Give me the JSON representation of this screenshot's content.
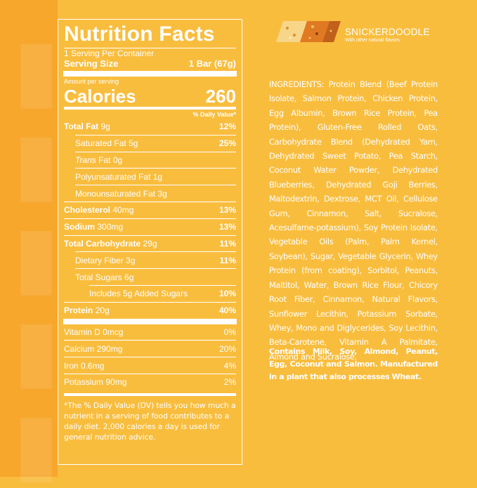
{
  "colors": {
    "background": "#f9bd3e",
    "accent": "#f7a72c",
    "text": "#ffffff"
  },
  "panel": {
    "title": "Nutrition Facts",
    "servings": "1 Serving Per Container",
    "serving_size_label": "Serving Size",
    "serving_size_value": "1 Bar (67g)",
    "amount_label": "Amount per serving",
    "calories_label": "Calories",
    "calories_value": "260",
    "daily_value_header": "% Daily Value*",
    "rows": [
      {
        "label": "Total Fat",
        "amount": "9g",
        "dv": "12%"
      },
      {
        "label": "Saturated Fat",
        "amount": "5g",
        "dv": "25%"
      },
      {
        "label_italic": "Trans",
        "label": "Fat",
        "amount": "0g",
        "dv": ""
      },
      {
        "label": "Polyunsaturated Fat",
        "amount": "1g",
        "dv": ""
      },
      {
        "label": "Monounsaturated Fat",
        "amount": "3g",
        "dv": ""
      },
      {
        "label": "Cholesterol",
        "amount": "40mg",
        "dv": "13%"
      },
      {
        "label": "Sodium",
        "amount": "300mg",
        "dv": "13%"
      },
      {
        "label": "Total Carbohydrate",
        "amount": "29g",
        "dv": "11%"
      },
      {
        "label": "Dietary Fiber",
        "amount": "3g",
        "dv": "11%"
      },
      {
        "label": "Total Sugars",
        "amount": "6g",
        "dv": ""
      },
      {
        "label": "Includes 5g Added Sugars",
        "amount": "",
        "dv": "10%"
      },
      {
        "label": "Protein",
        "amount": "20g",
        "dv": "40%"
      }
    ],
    "vitamins": [
      {
        "label": "Vitamin D 0mcg",
        "dv": "0%"
      },
      {
        "label": "Calcium 290mg",
        "dv": "20%"
      },
      {
        "label": "Iron 0.6mg",
        "dv": "4%"
      },
      {
        "label": "Potassium 90mg",
        "dv": "2%"
      }
    ],
    "footnote": "*The % Daily Value (DV) tells you how much a nutrient in a serving of food contributes to a daily diet. 2,000 calories a day is used for general nutrition advice."
  },
  "flavor": {
    "name": "SNICKERDOODLE",
    "subtitle": "With other natural flavors"
  },
  "ingredients": "INGREDIENTS: Protein Blend (Beef Protein Isolate, Salmon Protein, Chicken Protein, Egg Albumin, Brown Rice Protein, Pea Protein), Gluten-Free Rolled Oats, Carbohydrate Blend (Dehydrated Yam, Dehydrated Sweet Potato, Pea Starch, Coconut Water Powder, Dehydrated Blueberries, Dehydrated Goji Berries, Maltodextrin, Dextrose, MCT Oil, Cellulose Gum, Cinnamon, Salt, Sucralose, Acesulfame-potassium), Soy Protein Isolate, Vegetable Oils (Palm, Palm Kernel, Soybean), Sugar, Vegetable Glycerin, Whey Protein (from coating), Sorbitol, Peanuts, Maltitol, Water, Brown Rice Flour, Chicory Root Fiber, Cinnamon, Natural Flavors, Sunflower Lecithin, Potassium Sorbate, Whey, Mono and Diglycerides, Soy Lecithin, Beta-Carotene, Vitamin A Palmitate, Almond and Sucralose.",
  "allergens": "Contains Milk, Soy, Almond, Peanut, Egg, Coconut and Salmon. Manufactured in a plant that also processes Wheat."
}
